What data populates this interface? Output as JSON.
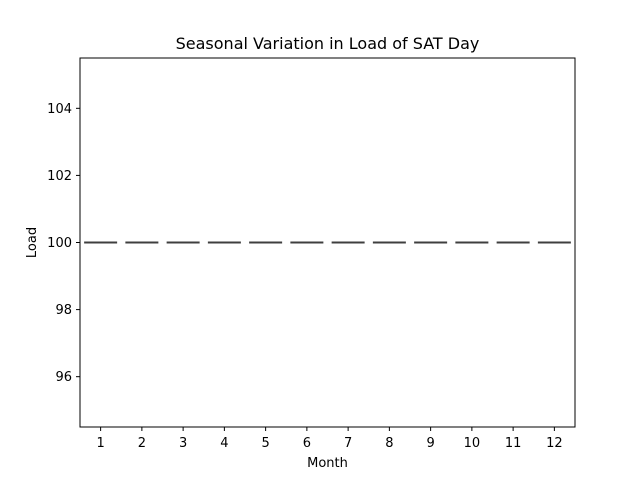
{
  "chart_data": {
    "type": "box",
    "title": "Seasonal Variation in Load of SAT Day",
    "xlabel": "Month",
    "ylabel": "Load",
    "categories": [
      "1",
      "2",
      "3",
      "4",
      "5",
      "6",
      "7",
      "8",
      "9",
      "10",
      "11",
      "12"
    ],
    "values": [
      100,
      100,
      100,
      100,
      100,
      100,
      100,
      100,
      100,
      100,
      100,
      100
    ],
    "ylim": [
      94.5,
      105.5
    ],
    "yticks": [
      96,
      98,
      100,
      102,
      104
    ],
    "grid": false,
    "colors": {
      "box_line": "#3f3f3f",
      "axes": "#000000",
      "background": "#ffffff"
    }
  }
}
